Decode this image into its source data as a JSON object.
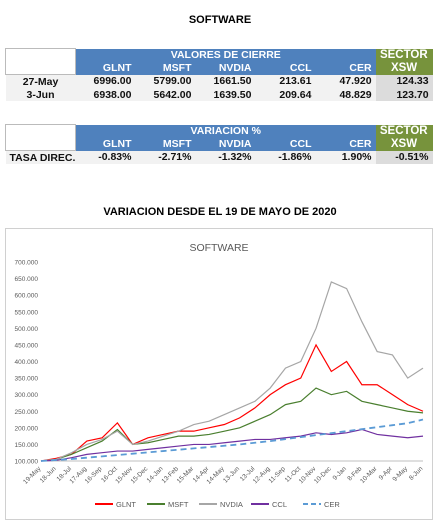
{
  "header": {
    "title": "SOFTWARE"
  },
  "table1": {
    "group_header": "VALORES DE CIERRE",
    "sector_header": "SECTOR",
    "sector_sub": "XSW",
    "columns": [
      "GLNT",
      "MSFT",
      "NVDIA",
      "CCL",
      "CER"
    ],
    "rows": [
      [
        "27-May",
        "6996.00",
        "5799.00",
        "1661.50",
        "213.61",
        "47.920",
        "124.33"
      ],
      [
        "3-Jun",
        "6938.00",
        "5642.00",
        "1639.50",
        "209.64",
        "48.829",
        "123.70"
      ]
    ]
  },
  "table2": {
    "group_header": "VARIACION %",
    "sector_header": "SECTOR",
    "sector_sub": "XSW",
    "columns": [
      "GLNT",
      "MSFT",
      "NVDIA",
      "CCL",
      "CER"
    ],
    "rows": [
      [
        "TASA DIREC.",
        "-0.83%",
        "-2.71%",
        "-1.32%",
        "-1.86%",
        "1.90%",
        "-0.51%"
      ]
    ]
  },
  "section_title": "VARIACION DESDE EL 19 DE MAYO DE 2020",
  "chart_data": {
    "type": "line",
    "title": "SOFTWARE",
    "categories": [
      "19-May",
      "18-Jun",
      "18-Jul",
      "17-Aug",
      "16-Sep",
      "16-Oct",
      "15-Nov",
      "15-Dec",
      "14-Jan",
      "13-Feb",
      "15-Mar",
      "14-Apr",
      "14-May",
      "13-Jun",
      "13-Jul",
      "12-Aug",
      "11-Sep",
      "11-Oct",
      "10-Nov",
      "10-Dec",
      "9-Jan",
      "8-Feb",
      "10-Mar",
      "9-Apr",
      "9-May",
      "8-Jun"
    ],
    "series": [
      {
        "name": "GLNT",
        "color": "#ff0000",
        "values": [
          100,
          108,
          120,
          160,
          170,
          215,
          150,
          170,
          180,
          190,
          190,
          200,
          210,
          230,
          260,
          300,
          330,
          350,
          450,
          370,
          400,
          330,
          330,
          300,
          270,
          250
        ]
      },
      {
        "name": "MSFT",
        "color": "#4a7f2f",
        "values": [
          100,
          105,
          120,
          140,
          160,
          195,
          150,
          155,
          165,
          175,
          175,
          180,
          190,
          200,
          220,
          240,
          270,
          280,
          320,
          300,
          310,
          280,
          270,
          260,
          250,
          245
        ]
      },
      {
        "name": "NVDIA",
        "color": "#a6a6a6",
        "values": [
          100,
          105,
          125,
          150,
          165,
          190,
          150,
          160,
          175,
          190,
          210,
          220,
          240,
          260,
          280,
          320,
          380,
          400,
          500,
          640,
          620,
          520,
          430,
          420,
          350,
          380
        ]
      },
      {
        "name": "CCL",
        "color": "#7030a0",
        "values": [
          100,
          102,
          110,
          120,
          125,
          130,
          130,
          135,
          140,
          145,
          150,
          150,
          155,
          160,
          165,
          165,
          170,
          175,
          185,
          180,
          185,
          195,
          180,
          175,
          170,
          175
        ]
      },
      {
        "name": "CER",
        "color": "#5b9bd5",
        "dashed": true,
        "values": [
          100,
          103,
          106,
          110,
          114,
          118,
          122,
          126,
          130,
          134,
          138,
          142,
          146,
          150,
          155,
          160,
          166,
          172,
          178,
          184,
          190,
          196,
          202,
          208,
          214,
          225
        ]
      }
    ],
    "ylim": [
      100,
      700
    ],
    "yticks": [
      {
        "value": 100,
        "label": "100.000"
      },
      {
        "value": 150,
        "label": "150.000"
      },
      {
        "value": 200,
        "label": "200.000"
      },
      {
        "value": 250,
        "label": "250.000"
      },
      {
        "value": 300,
        "label": "300.000"
      },
      {
        "value": 350,
        "label": "350.000"
      },
      {
        "value": 400,
        "label": "400.000"
      },
      {
        "value": 450,
        "label": "450.000"
      },
      {
        "value": 500,
        "label": "500.000"
      },
      {
        "value": 550,
        "label": "550.000"
      },
      {
        "value": 600,
        "label": "600.000"
      },
      {
        "value": 650,
        "label": "650.000"
      },
      {
        "value": 700,
        "label": "700.000"
      }
    ],
    "grid": false,
    "legend": "bottom"
  }
}
